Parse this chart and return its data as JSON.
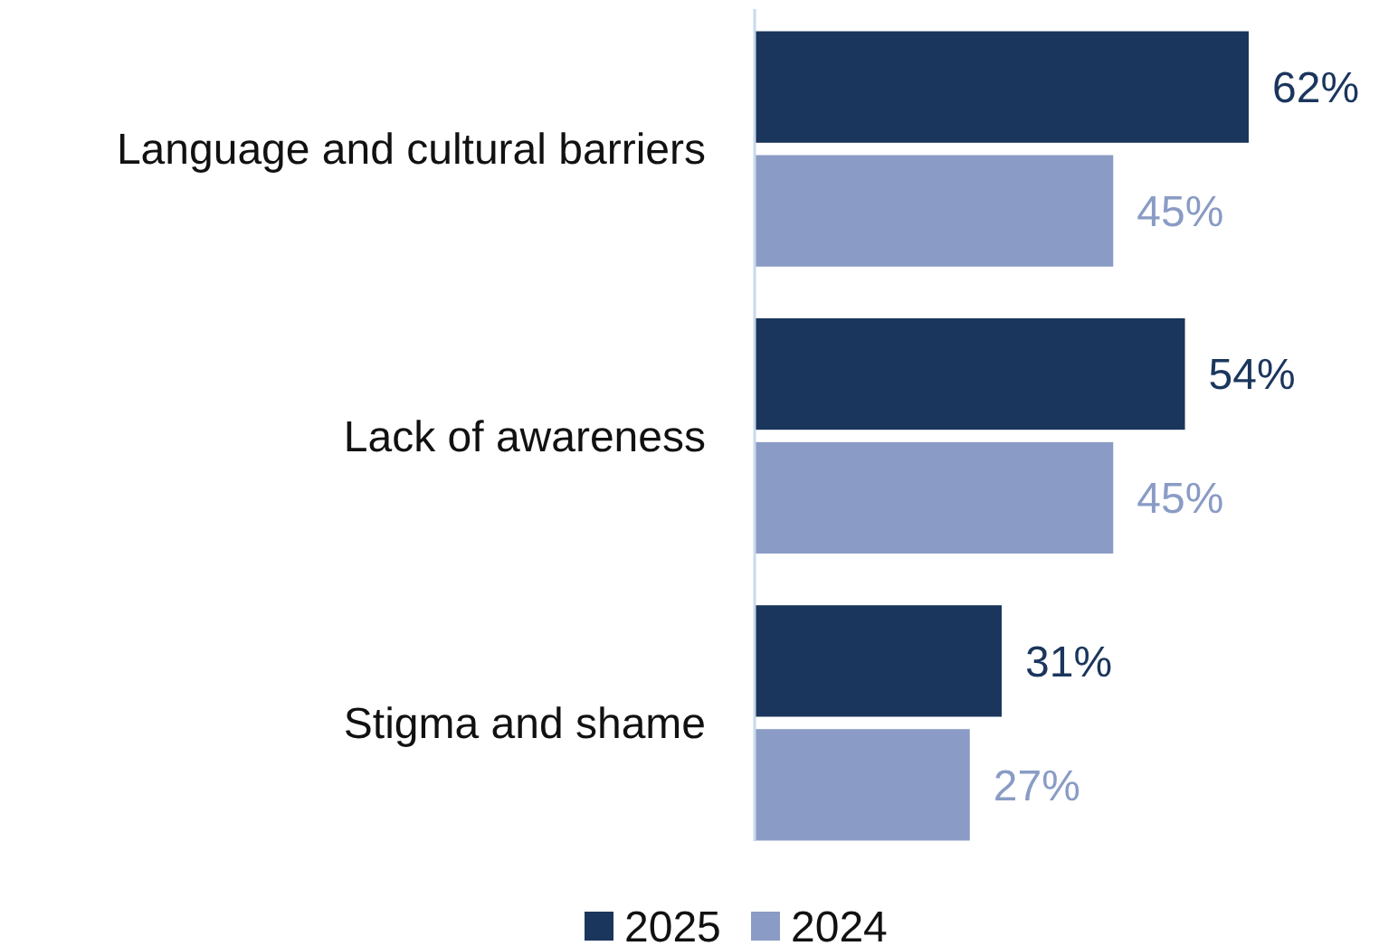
{
  "chart_data": {
    "type": "bar",
    "orientation": "horizontal",
    "categories": [
      "Language and cultural barriers",
      "Lack of awareness",
      "Stigma and shame"
    ],
    "series": [
      {
        "name": "2025",
        "color": "#1b365d",
        "values": [
          62,
          54,
          31
        ],
        "value_labels": [
          "62%",
          "54%",
          "31%"
        ]
      },
      {
        "name": "2024",
        "color": "#8a9cc5",
        "values": [
          45,
          45,
          27
        ],
        "value_labels": [
          "45%",
          "45%",
          "27%"
        ]
      }
    ],
    "legend": "bottom"
  }
}
